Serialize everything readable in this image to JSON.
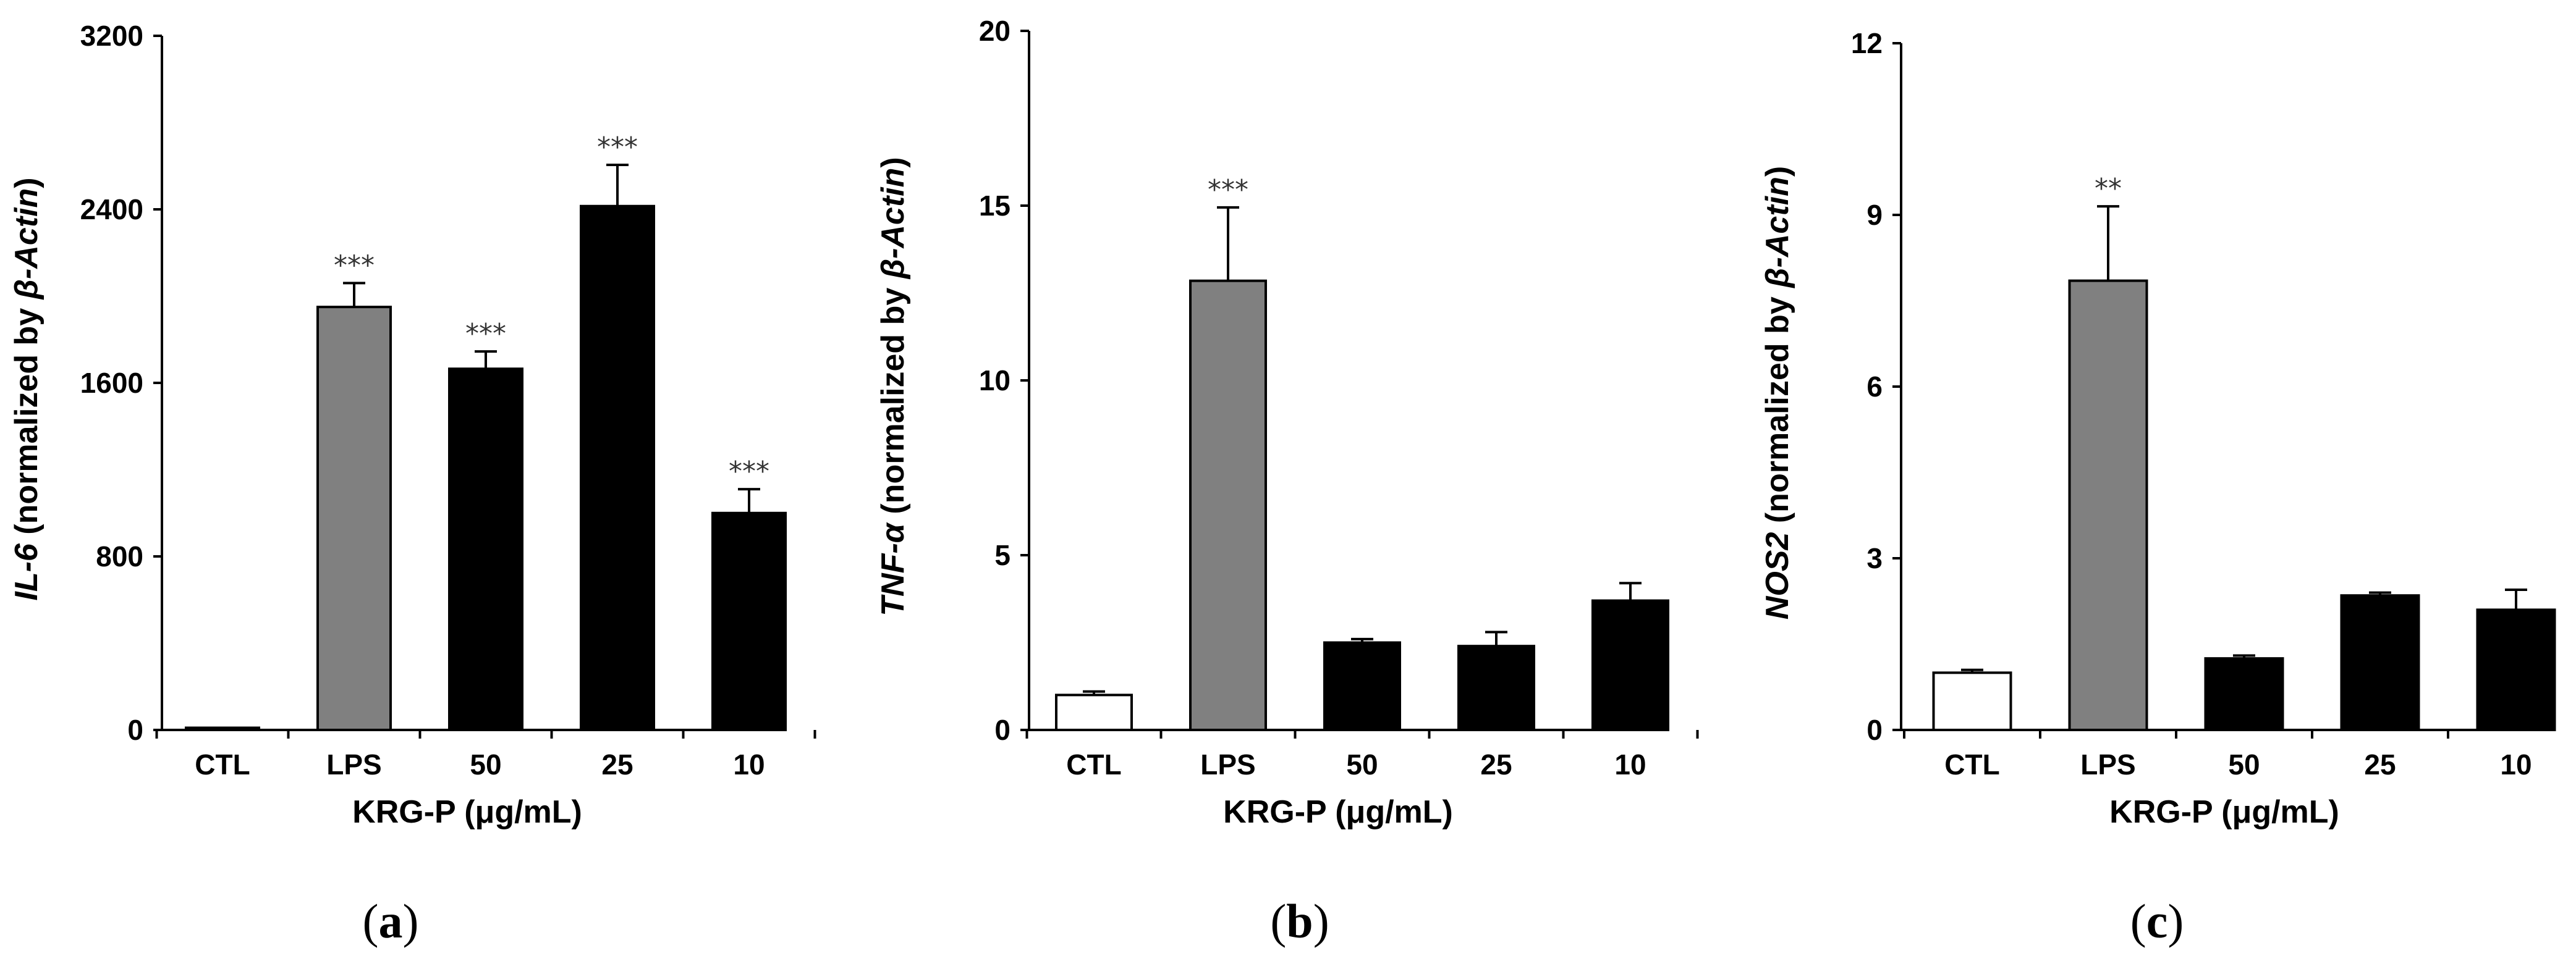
{
  "colors": {
    "CTL": "#ffffff",
    "LPS": "#808080",
    "KRG": "#000000",
    "axis": "#000000",
    "sig": "#333333"
  },
  "chart_data": [
    {
      "type": "bar",
      "panel": "(a)",
      "panel_letter": "a",
      "categories": [
        "CTL",
        "LPS",
        "50",
        "25",
        "10"
      ],
      "values": [
        10,
        1950,
        1665,
        2415,
        1000
      ],
      "errors": [
        0,
        110,
        80,
        190,
        110
      ],
      "significance": [
        "",
        "***",
        "***",
        "***",
        "***"
      ],
      "ylabel_gene": "IL-6",
      "ylabel_rest": " (normalized by ",
      "ylabel_ref": "β-Actin",
      "ylabel_close": ")",
      "xlabel": "KRG-P (μg/mL)",
      "ylim": [
        0,
        3200
      ],
      "yticks": [
        "0",
        "800",
        "1600",
        "2400",
        "3200"
      ]
    },
    {
      "type": "bar",
      "panel": "(b)",
      "panel_letter": "b",
      "categories": [
        "CTL",
        "LPS",
        "50",
        "25",
        "10"
      ],
      "values": [
        1.0,
        12.85,
        2.5,
        2.4,
        3.7
      ],
      "errors": [
        0.1,
        2.1,
        0.1,
        0.4,
        0.5
      ],
      "significance": [
        "",
        "***",
        "",
        "",
        ""
      ],
      "ylabel_gene": "TNF-α",
      "ylabel_rest": " (normalized by ",
      "ylabel_ref": "β-Actin",
      "ylabel_close": ")",
      "xlabel": "KRG-P (μg/mL)",
      "ylim": [
        0,
        20
      ],
      "yticks": [
        "0",
        "5",
        "10",
        "15",
        "20"
      ]
    },
    {
      "type": "bar",
      "panel": "(c)",
      "panel_letter": "c",
      "categories": [
        "CTL",
        "LPS",
        "50",
        "25",
        "10"
      ],
      "values": [
        1.0,
        7.85,
        1.25,
        2.35,
        2.1
      ],
      "errors": [
        0.05,
        1.3,
        0.05,
        0.05,
        0.35
      ],
      "significance": [
        "",
        "**",
        "",
        "",
        ""
      ],
      "ylabel_gene": "NOS2",
      "ylabel_rest": " (normalized by ",
      "ylabel_ref": "β-Actin",
      "ylabel_close": ")",
      "xlabel": "KRG-P (μg/mL)",
      "ylim": [
        0,
        12
      ],
      "yticks": [
        "0",
        "3",
        "6",
        "9",
        "12"
      ]
    }
  ]
}
